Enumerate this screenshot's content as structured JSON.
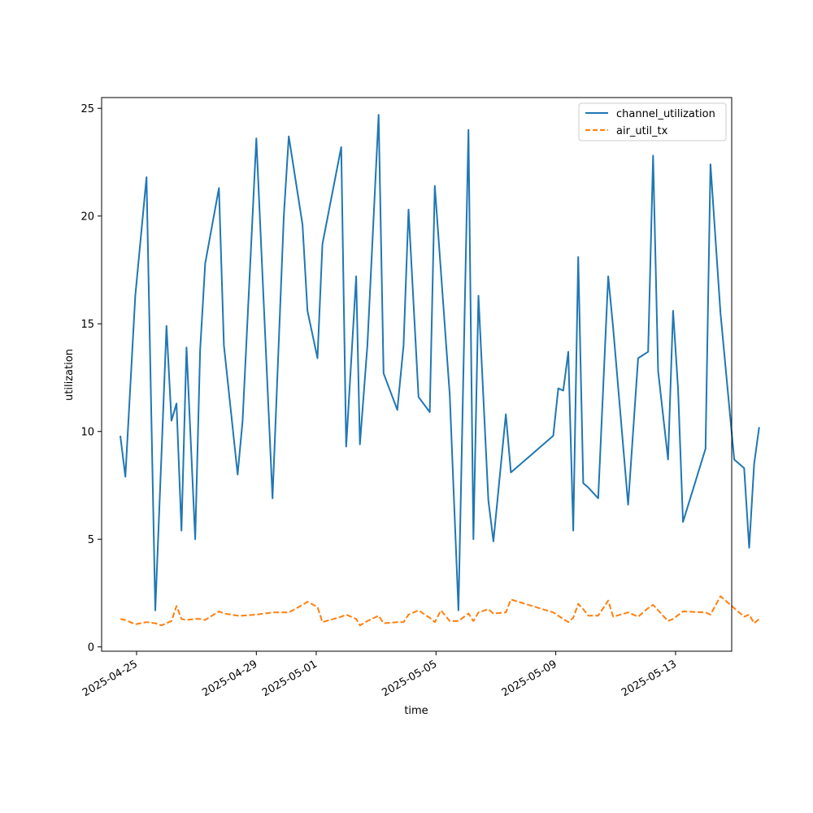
{
  "chart_data": {
    "type": "line",
    "xlabel": "time",
    "ylabel": "utilization",
    "x_tick_labels": [
      "2025-04-25",
      "2025-04-29",
      "2025-05-01",
      "2025-05-05",
      "2025-05-09",
      "2025-05-13"
    ],
    "y_tick_labels": [
      "0",
      "5",
      "10",
      "15",
      "20",
      "25"
    ],
    "ylim": [
      -0.2,
      25.5
    ],
    "xlim": [
      "2025-04-23T20:00",
      "2025-05-14T21:00"
    ],
    "grid": false,
    "legend": "top-right",
    "series": [
      {
        "name": "channel_utilization",
        "color": "#1f77b4",
        "style": "solid",
        "points": [
          [
            "2025-04-24T11:00",
            9.8
          ],
          [
            "2025-04-24T15:00",
            7.9
          ],
          [
            "2025-04-24T23:00",
            16.3
          ],
          [
            "2025-04-25T08:00",
            21.8
          ],
          [
            "2025-04-25T15:00",
            1.7
          ],
          [
            "2025-04-25T20:00",
            9.0
          ],
          [
            "2025-04-26T00:00",
            14.9
          ],
          [
            "2025-04-26T04:00",
            10.5
          ],
          [
            "2025-04-26T08:00",
            11.3
          ],
          [
            "2025-04-26T12:00",
            5.4
          ],
          [
            "2025-04-26T16:00",
            13.9
          ],
          [
            "2025-04-26T23:00",
            5.0
          ],
          [
            "2025-04-27T03:00",
            13.8
          ],
          [
            "2025-04-27T07:00",
            17.8
          ],
          [
            "2025-04-27T18:00",
            21.3
          ],
          [
            "2025-04-27T22:00",
            14.0
          ],
          [
            "2025-04-28T09:00",
            8.0
          ],
          [
            "2025-04-28T13:00",
            10.5
          ],
          [
            "2025-04-29T00:00",
            23.6
          ],
          [
            "2025-04-29T13:00",
            6.9
          ],
          [
            "2025-04-29T22:00",
            20.0
          ],
          [
            "2025-04-30T02:00",
            23.7
          ],
          [
            "2025-04-30T13:00",
            19.6
          ],
          [
            "2025-04-30T17:00",
            15.6
          ],
          [
            "2025-05-01T01:00",
            13.4
          ],
          [
            "2025-05-01T05:00",
            18.7
          ],
          [
            "2025-05-01T20:00",
            23.2
          ],
          [
            "2025-05-02T00:00",
            9.3
          ],
          [
            "2025-05-02T08:00",
            17.2
          ],
          [
            "2025-05-02T11:00",
            9.4
          ],
          [
            "2025-05-02T17:00",
            14.0
          ],
          [
            "2025-05-03T02:00",
            24.7
          ],
          [
            "2025-05-03T06:00",
            12.7
          ],
          [
            "2025-05-03T17:00",
            11.0
          ],
          [
            "2025-05-03T22:00",
            14.0
          ],
          [
            "2025-05-04T02:00",
            20.3
          ],
          [
            "2025-05-04T10:00",
            11.6
          ],
          [
            "2025-05-04T19:00",
            10.9
          ],
          [
            "2025-05-04T23:00",
            21.4
          ],
          [
            "2025-05-05T11:00",
            11.7
          ],
          [
            "2025-05-05T18:00",
            1.7
          ],
          [
            "2025-05-06T02:00",
            24.0
          ],
          [
            "2025-05-06T06:00",
            5.0
          ],
          [
            "2025-05-06T10:00",
            16.3
          ],
          [
            "2025-05-06T18:00",
            6.8
          ],
          [
            "2025-05-06T22:00",
            4.9
          ],
          [
            "2025-05-07T08:00",
            10.8
          ],
          [
            "2025-05-07T12:00",
            8.1
          ],
          [
            "2025-05-08T22:00",
            9.8
          ],
          [
            "2025-05-09T02:00",
            12.0
          ],
          [
            "2025-05-09T06:00",
            11.9
          ],
          [
            "2025-05-09T10:00",
            13.7
          ],
          [
            "2025-05-09T14:00",
            5.4
          ],
          [
            "2025-05-09T18:00",
            18.1
          ],
          [
            "2025-05-09T22:00",
            7.6
          ],
          [
            "2025-05-10T02:00",
            7.4
          ],
          [
            "2025-05-10T10:00",
            6.9
          ],
          [
            "2025-05-10T18:00",
            17.2
          ],
          [
            "2025-05-10T22:00",
            14.8
          ],
          [
            "2025-05-11T10:00",
            6.6
          ],
          [
            "2025-05-11T18:00",
            13.4
          ],
          [
            "2025-05-12T02:00",
            13.7
          ],
          [
            "2025-05-12T06:00",
            22.8
          ],
          [
            "2025-05-12T10:00",
            12.8
          ],
          [
            "2025-05-12T18:00",
            8.7
          ],
          [
            "2025-05-12T22:00",
            15.6
          ],
          [
            "2025-05-13T02:00",
            12.0
          ],
          [
            "2025-05-13T06:00",
            5.8
          ],
          [
            "2025-05-14T00:00",
            9.2
          ],
          [
            "2025-05-14T04:00",
            22.4
          ],
          [
            "2025-05-14T12:00",
            15.5
          ],
          [
            "2025-05-14T23:00",
            8.7
          ],
          [
            "2025-05-15T07:00",
            8.3
          ],
          [
            "2025-05-15T11:00",
            4.6
          ],
          [
            "2025-05-15T15:00",
            8.5
          ],
          [
            "2025-05-15T19:00",
            10.2
          ]
        ]
      },
      {
        "name": "air_util_tx",
        "color": "#ff7f0e",
        "style": "dashed",
        "points": [
          [
            "2025-04-24T11:00",
            1.3
          ],
          [
            "2025-04-24T15:00",
            1.25
          ],
          [
            "2025-04-24T23:00",
            1.05
          ],
          [
            "2025-04-25T08:00",
            1.15
          ],
          [
            "2025-04-25T15:00",
            1.1
          ],
          [
            "2025-04-25T20:00",
            1.0
          ],
          [
            "2025-04-26T00:00",
            1.1
          ],
          [
            "2025-04-26T04:00",
            1.2
          ],
          [
            "2025-04-26T08:00",
            1.9
          ],
          [
            "2025-04-26T12:00",
            1.3
          ],
          [
            "2025-04-26T16:00",
            1.25
          ],
          [
            "2025-04-26T23:00",
            1.3
          ],
          [
            "2025-04-27T03:00",
            1.3
          ],
          [
            "2025-04-27T07:00",
            1.25
          ],
          [
            "2025-04-27T18:00",
            1.65
          ],
          [
            "2025-04-27T22:00",
            1.55
          ],
          [
            "2025-04-28T09:00",
            1.45
          ],
          [
            "2025-04-28T13:00",
            1.45
          ],
          [
            "2025-04-29T00:00",
            1.5
          ],
          [
            "2025-04-29T13:00",
            1.6
          ],
          [
            "2025-04-29T22:00",
            1.6
          ],
          [
            "2025-04-30T02:00",
            1.6
          ],
          [
            "2025-04-30T13:00",
            1.95
          ],
          [
            "2025-04-30T17:00",
            2.1
          ],
          [
            "2025-05-01T01:00",
            1.85
          ],
          [
            "2025-05-01T05:00",
            1.15
          ],
          [
            "2025-05-01T20:00",
            1.4
          ],
          [
            "2025-05-02T00:00",
            1.5
          ],
          [
            "2025-05-02T08:00",
            1.3
          ],
          [
            "2025-05-02T11:00",
            1.0
          ],
          [
            "2025-05-02T17:00",
            1.2
          ],
          [
            "2025-05-03T02:00",
            1.45
          ],
          [
            "2025-05-03T06:00",
            1.1
          ],
          [
            "2025-05-03T17:00",
            1.15
          ],
          [
            "2025-05-03T22:00",
            1.15
          ],
          [
            "2025-05-04T02:00",
            1.5
          ],
          [
            "2025-05-04T10:00",
            1.7
          ],
          [
            "2025-05-04T19:00",
            1.35
          ],
          [
            "2025-05-04T23:00",
            1.15
          ],
          [
            "2025-05-05T04:00",
            1.7
          ],
          [
            "2025-05-05T11:00",
            1.2
          ],
          [
            "2025-05-05T18:00",
            1.2
          ],
          [
            "2025-05-06T02:00",
            1.55
          ],
          [
            "2025-05-06T06:00",
            1.2
          ],
          [
            "2025-05-06T10:00",
            1.6
          ],
          [
            "2025-05-06T18:00",
            1.75
          ],
          [
            "2025-05-06T22:00",
            1.55
          ],
          [
            "2025-05-07T08:00",
            1.6
          ],
          [
            "2025-05-07T12:00",
            2.2
          ],
          [
            "2025-05-08T22:00",
            1.6
          ],
          [
            "2025-05-09T06:00",
            1.3
          ],
          [
            "2025-05-09T10:00",
            1.15
          ],
          [
            "2025-05-09T14:00",
            1.35
          ],
          [
            "2025-05-09T18:00",
            2.0
          ],
          [
            "2025-05-09T22:00",
            1.75
          ],
          [
            "2025-05-10T02:00",
            1.45
          ],
          [
            "2025-05-10T10:00",
            1.45
          ],
          [
            "2025-05-10T18:00",
            2.15
          ],
          [
            "2025-05-10T22:00",
            1.4
          ],
          [
            "2025-05-11T10:00",
            1.6
          ],
          [
            "2025-05-11T18:00",
            1.4
          ],
          [
            "2025-05-12T02:00",
            1.8
          ],
          [
            "2025-05-12T06:00",
            1.95
          ],
          [
            "2025-05-12T18:00",
            1.2
          ],
          [
            "2025-05-12T22:00",
            1.3
          ],
          [
            "2025-05-13T06:00",
            1.65
          ],
          [
            "2025-05-14T00:00",
            1.6
          ],
          [
            "2025-05-14T04:00",
            1.5
          ],
          [
            "2025-05-14T12:00",
            2.35
          ],
          [
            "2025-05-14T23:00",
            1.8
          ],
          [
            "2025-05-15T07:00",
            1.4
          ],
          [
            "2025-05-15T11:00",
            1.5
          ],
          [
            "2025-05-15T15:00",
            1.1
          ],
          [
            "2025-05-15T19:00",
            1.3
          ]
        ]
      }
    ]
  }
}
